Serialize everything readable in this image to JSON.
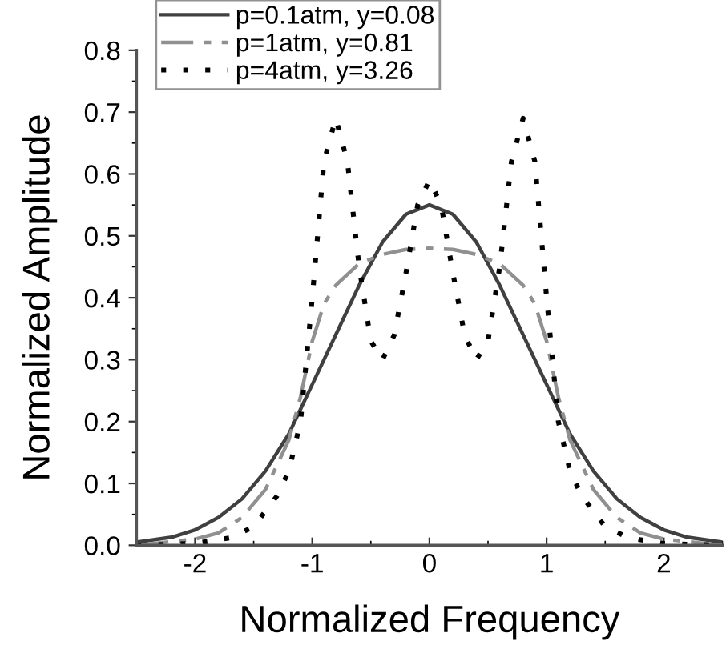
{
  "chart_data": {
    "type": "line",
    "xlabel": "Normalized Frequency",
    "ylabel": "Normalized Amplitude",
    "xlim": [
      -2.5,
      2.5
    ],
    "ylim": [
      0,
      0.8
    ],
    "xticks": [
      -2,
      -1,
      0,
      1,
      2
    ],
    "yticks": [
      {
        "value": 0,
        "label": "0.0"
      },
      {
        "value": 0.1,
        "label": "0.1"
      },
      {
        "value": 0.2,
        "label": "0.2"
      },
      {
        "value": 0.3,
        "label": "0.3"
      },
      {
        "value": 0.4,
        "label": "0.4"
      },
      {
        "value": 0.5,
        "label": "0.5"
      },
      {
        "value": 0.6,
        "label": "0.6"
      },
      {
        "value": 0.7,
        "label": "0.7"
      },
      {
        "value": 0.8,
        "label": "0.8"
      }
    ],
    "grid": false,
    "legend": "top left",
    "marker": "none",
    "series": [
      {
        "name": "p=0.1atm, y=0.08",
        "color": "#404040",
        "line_style": "solid",
        "x": [
          -2.5,
          -2.2,
          -2.0,
          -1.8,
          -1.6,
          -1.4,
          -1.2,
          -1.0,
          -0.8,
          -0.6,
          -0.4,
          -0.2,
          0,
          0.2,
          0.4,
          0.6,
          0.8,
          1.0,
          1.2,
          1.4,
          1.6,
          1.8,
          2.0,
          2.2,
          2.5
        ],
        "values": [
          0.005,
          0.013,
          0.025,
          0.045,
          0.075,
          0.12,
          0.18,
          0.26,
          0.34,
          0.42,
          0.49,
          0.535,
          0.55,
          0.535,
          0.49,
          0.42,
          0.34,
          0.26,
          0.18,
          0.12,
          0.075,
          0.045,
          0.025,
          0.013,
          0.005
        ]
      },
      {
        "name": "p=1atm, y=0.81",
        "color": "#909090",
        "line_style": "dashdot",
        "x": [
          -2.5,
          -2.0,
          -1.8,
          -1.6,
          -1.4,
          -1.2,
          -1.1,
          -1.0,
          -0.9,
          -0.8,
          -0.6,
          -0.4,
          -0.2,
          0,
          0.2,
          0.4,
          0.6,
          0.8,
          0.9,
          1.0,
          1.1,
          1.2,
          1.4,
          1.6,
          1.8,
          2.0,
          2.5
        ],
        "values": [
          0,
          0.01,
          0.02,
          0.045,
          0.09,
          0.17,
          0.24,
          0.33,
          0.39,
          0.42,
          0.455,
          0.47,
          0.478,
          0.48,
          0.478,
          0.47,
          0.455,
          0.42,
          0.39,
          0.33,
          0.24,
          0.17,
          0.09,
          0.045,
          0.02,
          0.01,
          0
        ]
      },
      {
        "name": "p=4atm, y=3.26",
        "color": "#000000",
        "line_style": "dotted",
        "x": [
          -2.5,
          -2.0,
          -1.7,
          -1.5,
          -1.3,
          -1.2,
          -1.1,
          -1.0,
          -0.9,
          -0.8,
          -0.7,
          -0.6,
          -0.5,
          -0.4,
          -0.3,
          -0.2,
          -0.1,
          0,
          0.1,
          0.2,
          0.3,
          0.4,
          0.5,
          0.6,
          0.7,
          0.8,
          0.9,
          1.0,
          1.1,
          1.2,
          1.3,
          1.5,
          1.7,
          2.0,
          2.5
        ],
        "values": [
          0,
          0.003,
          0.012,
          0.03,
          0.08,
          0.12,
          0.2,
          0.4,
          0.62,
          0.69,
          0.62,
          0.45,
          0.33,
          0.3,
          0.34,
          0.44,
          0.55,
          0.59,
          0.55,
          0.44,
          0.34,
          0.3,
          0.33,
          0.45,
          0.62,
          0.69,
          0.62,
          0.4,
          0.2,
          0.12,
          0.08,
          0.03,
          0.012,
          0.003,
          0
        ]
      }
    ]
  }
}
